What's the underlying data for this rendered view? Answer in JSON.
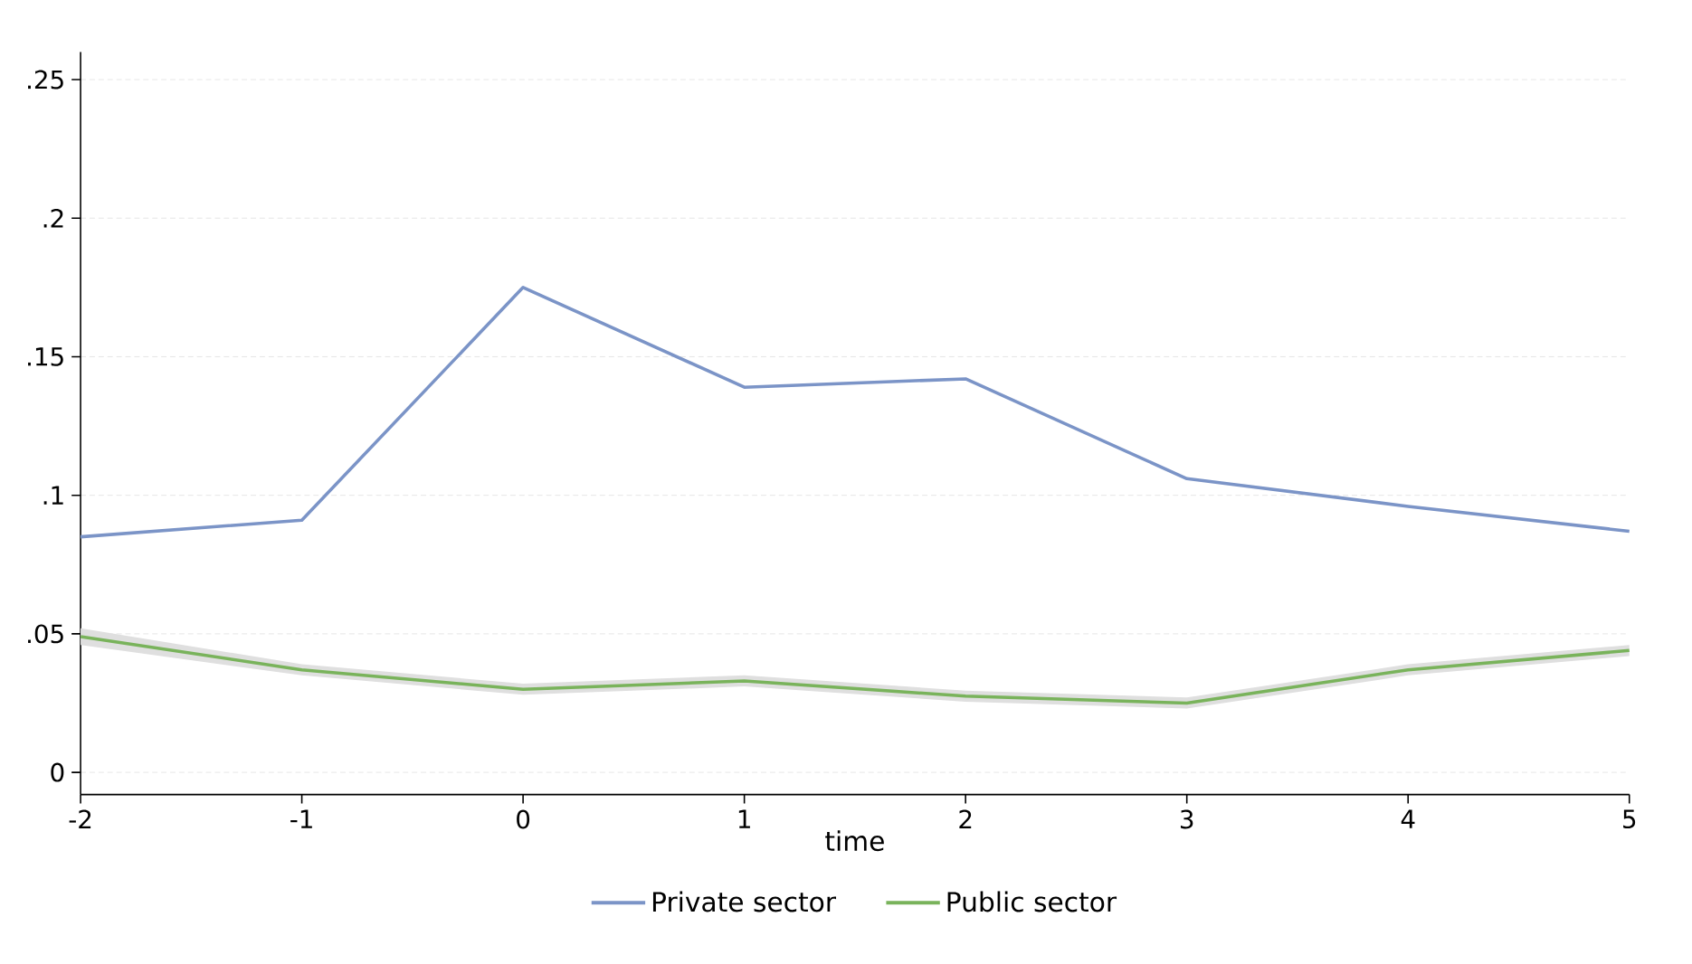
{
  "chart_data": {
    "type": "line",
    "xlabel": "time",
    "x": [
      -2,
      -1,
      0,
      1,
      2,
      3,
      4,
      5
    ],
    "series": [
      {
        "name": "Private sector",
        "color": "#7b94c7",
        "values": [
          0.085,
          0.091,
          0.175,
          0.139,
          0.142,
          0.106,
          0.096,
          0.087
        ]
      },
      {
        "name": "Public sector",
        "color": "#79b35b",
        "values": [
          0.049,
          0.037,
          0.03,
          0.033,
          0.0275,
          0.025,
          0.037,
          0.044
        ],
        "lower": [
          0.046,
          0.035,
          0.028,
          0.031,
          0.0255,
          0.023,
          0.035,
          0.042
        ],
        "upper": [
          0.052,
          0.039,
          0.032,
          0.035,
          0.0295,
          0.027,
          0.039,
          0.046
        ]
      }
    ],
    "xlim": [
      -2,
      5
    ],
    "ylim": [
      -0.008,
      0.26
    ],
    "xticks": [
      -2,
      -1,
      0,
      1,
      2,
      3,
      4,
      5
    ],
    "yticks": [
      {
        "value": 0,
        "label": "0"
      },
      {
        "value": 0.05,
        "label": ".05"
      },
      {
        "value": 0.1,
        "label": ".1"
      },
      {
        "value": 0.15,
        "label": ".15"
      },
      {
        "value": 0.2,
        "label": ".2"
      },
      {
        "value": 0.25,
        "label": ".25"
      }
    ],
    "grid": "y",
    "legend": "bottom",
    "marker": "none",
    "line_style": "solid"
  }
}
